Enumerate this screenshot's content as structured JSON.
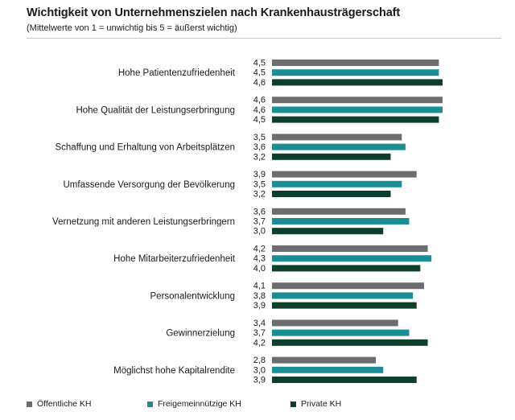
{
  "title": "Wichtigkeit von Unternehmenszielen nach Krankenhausträgerschaft",
  "subtitle": "(Mittelwerte von 1 = unwichtig bis 5 = äußerst wichtig)",
  "colors": {
    "oeffentlich": "#6d6c6f",
    "freigemeinnuetzig": "#1a8e92",
    "privat": "#0d3f2c"
  },
  "chart_data": {
    "type": "bar",
    "orientation": "horizontal",
    "title": "Wichtigkeit von Unternehmenszielen nach Krankenhausträgerschaft",
    "subtitle": "(Mittelwerte von 1 = unwichtig bis 5 = äußerst wichtig)",
    "xlim": [
      0,
      4.6
    ],
    "categories": [
      "Hohe Patientenzufriedenheit",
      "Hohe Qualität der Leistungserbringung",
      "Schaffung und Erhaltung von Arbeitsplätzen",
      "Umfassende Versorgung der Bevölkerung",
      "Vernetzung mit anderen Leistungserbringern",
      "Hohe Mitarbeiterzufriedenheit",
      "Personalentwicklung",
      "Gewinnerzielung",
      "Möglichst hohe Kapitalrendite"
    ],
    "series": [
      {
        "name": "Öffentliche KH",
        "color_key": "oeffentlich",
        "values": [
          4.5,
          4.6,
          3.5,
          3.9,
          3.6,
          4.2,
          4.1,
          3.4,
          2.8
        ],
        "labels": [
          "4,5",
          "4,6",
          "3,5",
          "3,9",
          "3,6",
          "4,2",
          "4,1",
          "3,4",
          "2,8"
        ]
      },
      {
        "name": "Freigemeinnützige KH",
        "color_key": "freigemeinnuetzig",
        "values": [
          4.5,
          4.6,
          3.6,
          3.5,
          3.7,
          4.3,
          3.8,
          3.7,
          3.0
        ],
        "labels": [
          "4,5",
          "4,6",
          "3,6",
          "3,5",
          "3,7",
          "4,3",
          "3,8",
          "3,7",
          "3,0"
        ]
      },
      {
        "name": "Private KH",
        "color_key": "privat",
        "values": [
          4.6,
          4.5,
          3.2,
          3.2,
          3.0,
          4.0,
          3.9,
          4.2,
          3.9
        ],
        "labels": [
          "4,6",
          "4,5",
          "3,2",
          "3,2",
          "3,0",
          "4,0",
          "3,9",
          "4,2",
          "3,9"
        ]
      }
    ],
    "legend_position": "bottom"
  }
}
